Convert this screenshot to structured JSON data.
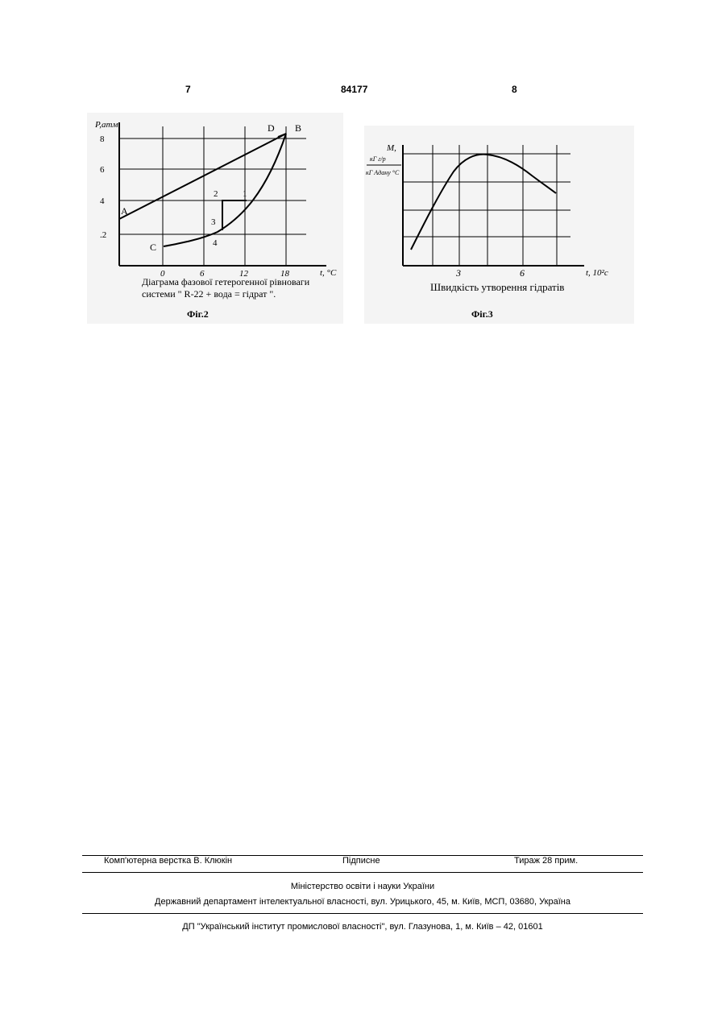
{
  "header": {
    "page_left": "7",
    "patent_number": "84177",
    "page_right": "8"
  },
  "fig2": {
    "y_axis_label": "P,атм",
    "y_ticks": [
      "8",
      "6",
      "4",
      ".2"
    ],
    "x_axis_label": "t, °C",
    "x_ticks": [
      "0",
      "6",
      "12",
      "18"
    ],
    "point_labels": [
      "A",
      "B",
      "C",
      "D",
      "1",
      "2",
      "3",
      "4"
    ],
    "caption_line1": "Діаграма фазової гетерогенної рівноваги",
    "caption_line2": "системи \" R-22 + вода = гідрат \".",
    "fig_label": "Фіг.2"
  },
  "fig3": {
    "y_axis_label_top": "M,",
    "y_axis_label_num": "кГ г/р",
    "y_axis_label_den": "кГ Адану °С",
    "x_axis_label": "t, 10²c",
    "x_ticks": [
      "3",
      "6"
    ],
    "caption": "Швидкість утворення гідратів",
    "fig_label": "Фіг.3"
  },
  "footer": {
    "layout_credit": "Комп'ютерна верстка В. Клюкін",
    "signed": "Підписне",
    "circulation": "Тираж 28 прим.",
    "ministry": "Міністерство освіти і науки України",
    "department": "Державний департамент інтелектуальної власності, вул. Урицького, 45, м. Київ, МСП, 03680, Україна",
    "institute": "ДП \"Український інститут промислової власності\", вул. Глазунова, 1, м. Київ – 42, 01601"
  }
}
